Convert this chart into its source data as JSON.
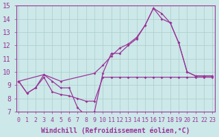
{
  "xlabel": "Windchill (Refroidissement éolien,°C)",
  "bg_color": "#cce8e8",
  "line_color": "#993399",
  "grid_color": "#aacccc",
  "xmin": 0,
  "xmax": 23,
  "ymin": 7,
  "ymax": 15,
  "line1_x": [
    0,
    1,
    2,
    3,
    4,
    5,
    6,
    7,
    8,
    9,
    10,
    11,
    12,
    13,
    14,
    15,
    16,
    17,
    18,
    19,
    20,
    21,
    22,
    23
  ],
  "line1_y": [
    9.3,
    8.4,
    8.8,
    9.6,
    8.5,
    8.3,
    8.2,
    8.0,
    7.8,
    7.8,
    9.6,
    9.6,
    9.6,
    9.6,
    9.6,
    9.6,
    9.6,
    9.6,
    9.6,
    9.6,
    9.6,
    9.6,
    9.6,
    9.6
  ],
  "line2_x": [
    0,
    1,
    2,
    3,
    4,
    5,
    6,
    7,
    8,
    9,
    10,
    11,
    12,
    13,
    14,
    15,
    16,
    17,
    18,
    19,
    20,
    21,
    22,
    23
  ],
  "line2_y": [
    9.3,
    8.4,
    8.8,
    9.8,
    9.3,
    8.8,
    8.8,
    7.3,
    6.7,
    7.0,
    9.9,
    11.4,
    11.4,
    12.0,
    12.5,
    13.5,
    14.8,
    14.4,
    13.7,
    12.2,
    10.0,
    9.7,
    9.7,
    9.7
  ],
  "line3_x": [
    0,
    3,
    5,
    9,
    10,
    11,
    12,
    13,
    14,
    15,
    16,
    17,
    18,
    19,
    20,
    21,
    22,
    23
  ],
  "line3_y": [
    9.3,
    9.8,
    9.3,
    9.9,
    10.5,
    11.2,
    11.8,
    12.1,
    12.6,
    13.5,
    14.8,
    14.0,
    13.7,
    12.2,
    10.0,
    9.7,
    9.7,
    9.7
  ],
  "xtick_labels": [
    "0",
    "1",
    "2",
    "3",
    "4",
    "5",
    "6",
    "7",
    "8",
    "9",
    "10",
    "11",
    "12",
    "13",
    "14",
    "15",
    "16",
    "17",
    "18",
    "19",
    "20",
    "21",
    "22",
    "23"
  ],
  "xlabel_fontsize": 7,
  "ytick_fontsize": 7,
  "xtick_fontsize": 6
}
